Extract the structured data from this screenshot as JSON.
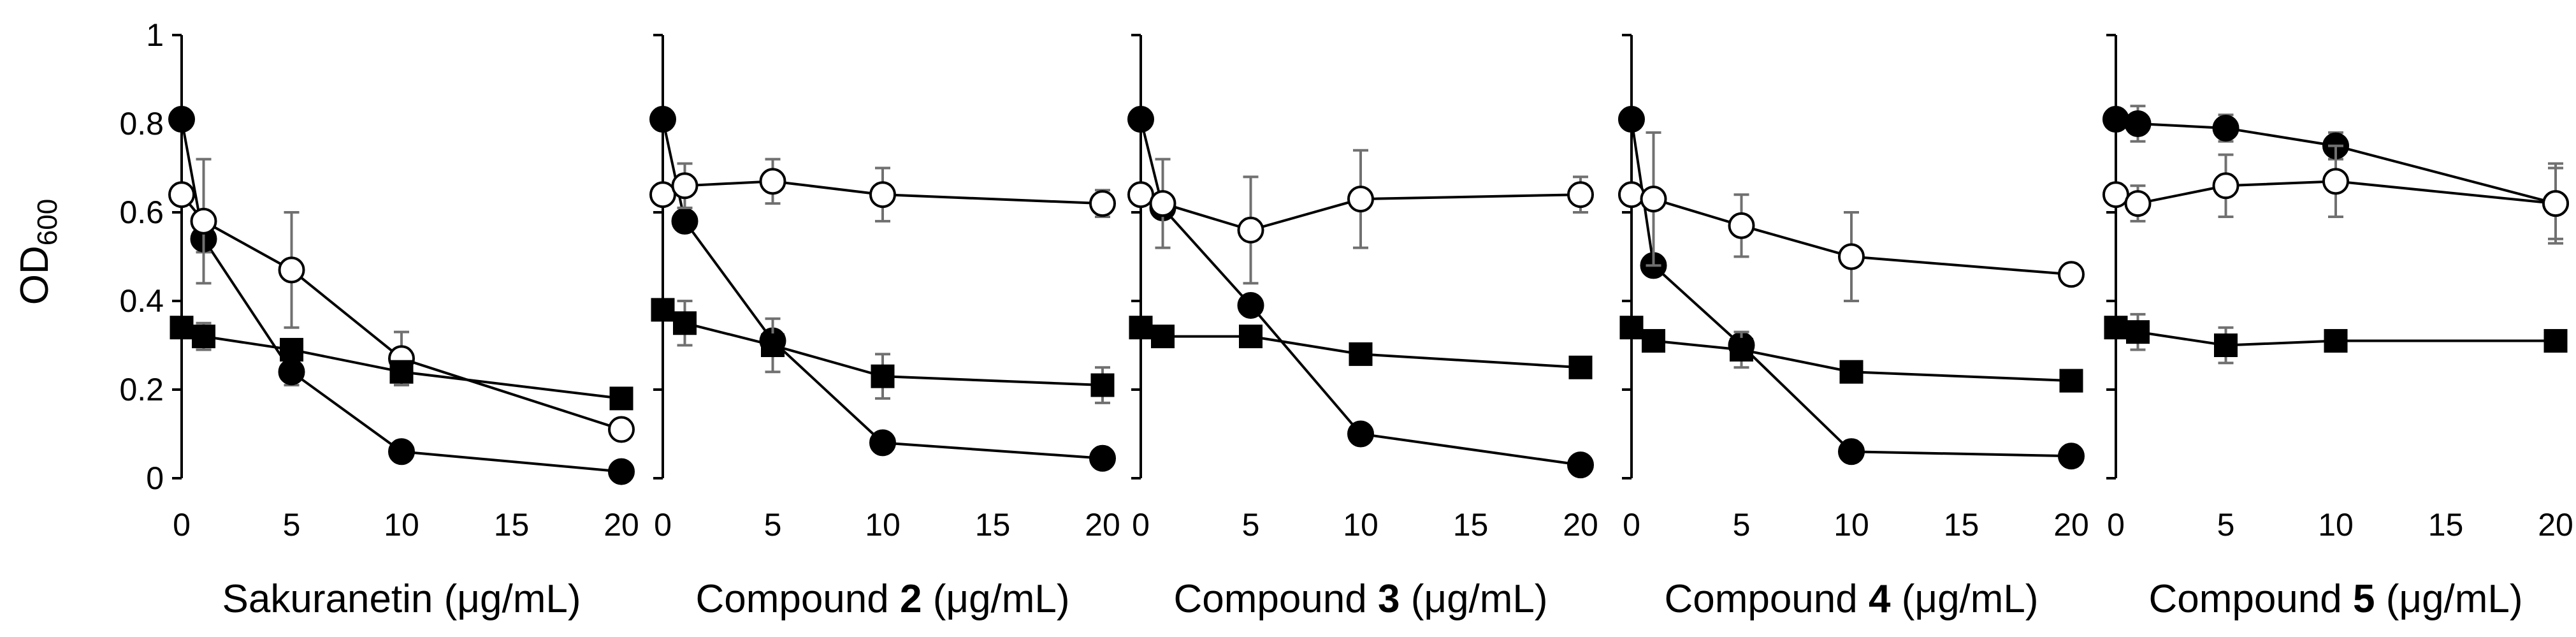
{
  "chart_data": {
    "type": "line",
    "ylabel": "OD",
    "ylabel_sub": "600",
    "ylim": [
      0,
      1
    ],
    "yticks": [
      0,
      0.2,
      0.4,
      0.6,
      0.8,
      1
    ],
    "ytick_labels": [
      "0",
      "0.2",
      "0.4",
      "0.6",
      "0.8",
      "1"
    ],
    "xlim": [
      0,
      20
    ],
    "xticks": [
      0,
      5,
      10,
      15,
      20
    ],
    "xtick_labels": [
      "0",
      "5",
      "10",
      "15",
      "20"
    ],
    "x": [
      0,
      1,
      5,
      10,
      20
    ],
    "series_styles": [
      {
        "name": "filled-circle",
        "marker": "circle",
        "fill": "#000000"
      },
      {
        "name": "open-circle",
        "marker": "circle",
        "fill": "#ffffff"
      },
      {
        "name": "filled-square",
        "marker": "square",
        "fill": "#000000"
      }
    ],
    "panels": [
      {
        "xlabel_pre": "Sakuranetin (μg/mL)",
        "xlabel_bold": "",
        "xlabel_post": "",
        "series": [
          {
            "values": [
              0.81,
              0.54,
              0.24,
              0.06,
              0.015
            ],
            "errors": [
              0,
              0.03,
              0.03,
              0,
              0
            ]
          },
          {
            "values": [
              0.64,
              0.58,
              0.47,
              0.27,
              0.11
            ],
            "errors": [
              0,
              0.14,
              0.13,
              0.06,
              0
            ]
          },
          {
            "values": [
              0.34,
              0.32,
              0.29,
              0.24,
              0.18
            ],
            "errors": [
              0,
              0.03,
              0,
              0,
              0
            ]
          }
        ]
      },
      {
        "xlabel_pre": "Compound ",
        "xlabel_bold": "2",
        "xlabel_post": " (μg/mL)",
        "series": [
          {
            "values": [
              0.81,
              0.58,
              0.31,
              0.08,
              0.045
            ],
            "errors": [
              0,
              0,
              0,
              0,
              0
            ]
          },
          {
            "values": [
              0.64,
              0.66,
              0.67,
              0.64,
              0.62
            ],
            "errors": [
              0,
              0.05,
              0.05,
              0.06,
              0.03
            ]
          },
          {
            "values": [
              0.38,
              0.35,
              0.3,
              0.23,
              0.21
            ],
            "errors": [
              0,
              0.05,
              0.06,
              0.05,
              0.04
            ]
          }
        ]
      },
      {
        "xlabel_pre": "Compound ",
        "xlabel_bold": "3",
        "xlabel_post": " (μg/mL)",
        "series": [
          {
            "values": [
              0.81,
              0.61,
              0.39,
              0.1,
              0.03
            ],
            "errors": [
              0,
              0,
              0,
              0,
              0
            ]
          },
          {
            "values": [
              0.64,
              0.62,
              0.56,
              0.63,
              0.64
            ],
            "errors": [
              0,
              0.1,
              0.12,
              0.11,
              0.04
            ]
          },
          {
            "values": [
              0.34,
              0.32,
              0.32,
              0.28,
              0.25
            ],
            "errors": [
              0,
              0,
              0,
              0,
              0
            ]
          }
        ]
      },
      {
        "xlabel_pre": "Compound ",
        "xlabel_bold": "4",
        "xlabel_post": " (μg/mL)",
        "series": [
          {
            "values": [
              0.81,
              0.48,
              0.3,
              0.06,
              0.05
            ],
            "errors": [
              0,
              0,
              0,
              0,
              0
            ]
          },
          {
            "values": [
              0.64,
              0.63,
              0.57,
              0.5,
              0.46
            ],
            "errors": [
              0,
              0.15,
              0.07,
              0.1,
              0
            ]
          },
          {
            "values": [
              0.34,
              0.31,
              0.29,
              0.24,
              0.22
            ],
            "errors": [
              0,
              0,
              0.04,
              0,
              0
            ]
          }
        ]
      },
      {
        "xlabel_pre": "Compound ",
        "xlabel_bold": "5",
        "xlabel_post": " (μg/mL)",
        "series": [
          {
            "values": [
              0.81,
              0.8,
              0.79,
              0.75,
              0.62
            ],
            "errors": [
              0,
              0.04,
              0.03,
              0.03,
              0.09
            ]
          },
          {
            "values": [
              0.64,
              0.62,
              0.66,
              0.67,
              0.62
            ],
            "errors": [
              0,
              0.04,
              0.07,
              0.08,
              0.08
            ]
          },
          {
            "values": [
              0.34,
              0.33,
              0.3,
              0.31,
              0.31
            ],
            "errors": [
              0,
              0.04,
              0.04,
              0,
              0
            ]
          }
        ]
      }
    ]
  }
}
